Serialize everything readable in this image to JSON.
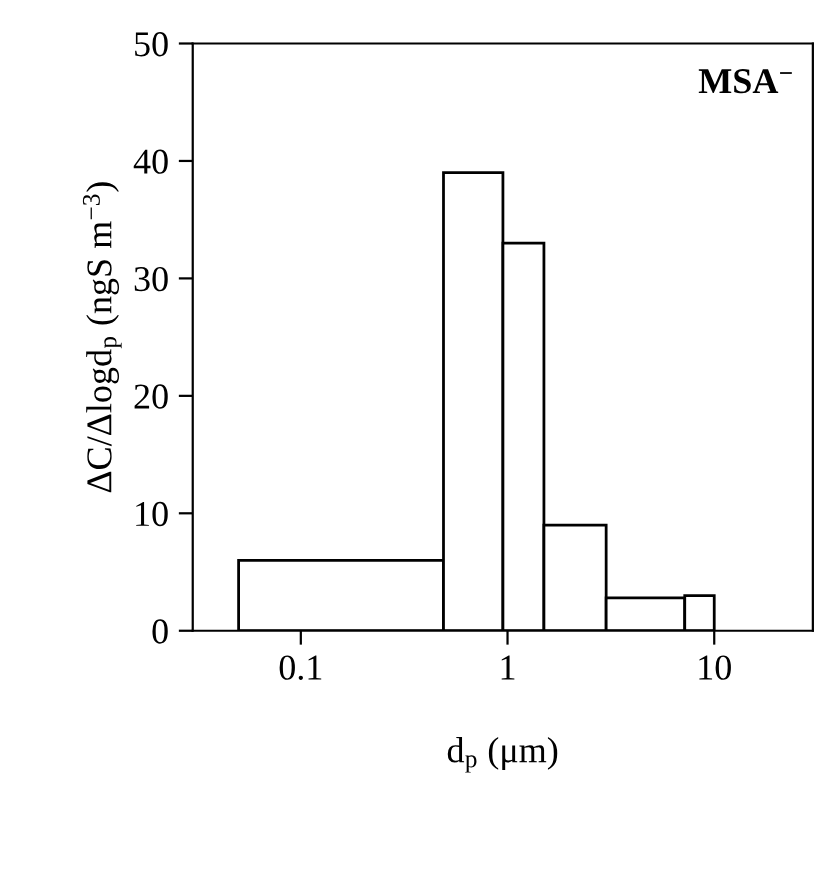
{
  "chart_data": {
    "type": "histogram",
    "xlabel": "d$_{p}$ (μm)",
    "ylabel": "ΔC/Δlogd$_{p}$ (ngS m$^{−3}$)",
    "annotations": [
      "MSA$^{−}$"
    ],
    "bins": [
      0.05,
      0.49,
      0.95,
      1.5,
      3.0,
      7.2,
      10
    ],
    "values": [
      6,
      39,
      33,
      9,
      2.8,
      3
    ],
    "color": "#ffffff",
    "log": "x",
    "xlim": [
      0.03,
      30
    ],
    "xticks": [
      0.1,
      1,
      10
    ],
    "ylim": [
      0,
      50
    ],
    "yticks": [
      0,
      10,
      20,
      30,
      40,
      50
    ],
    "grid": false,
    "legend": false
  }
}
